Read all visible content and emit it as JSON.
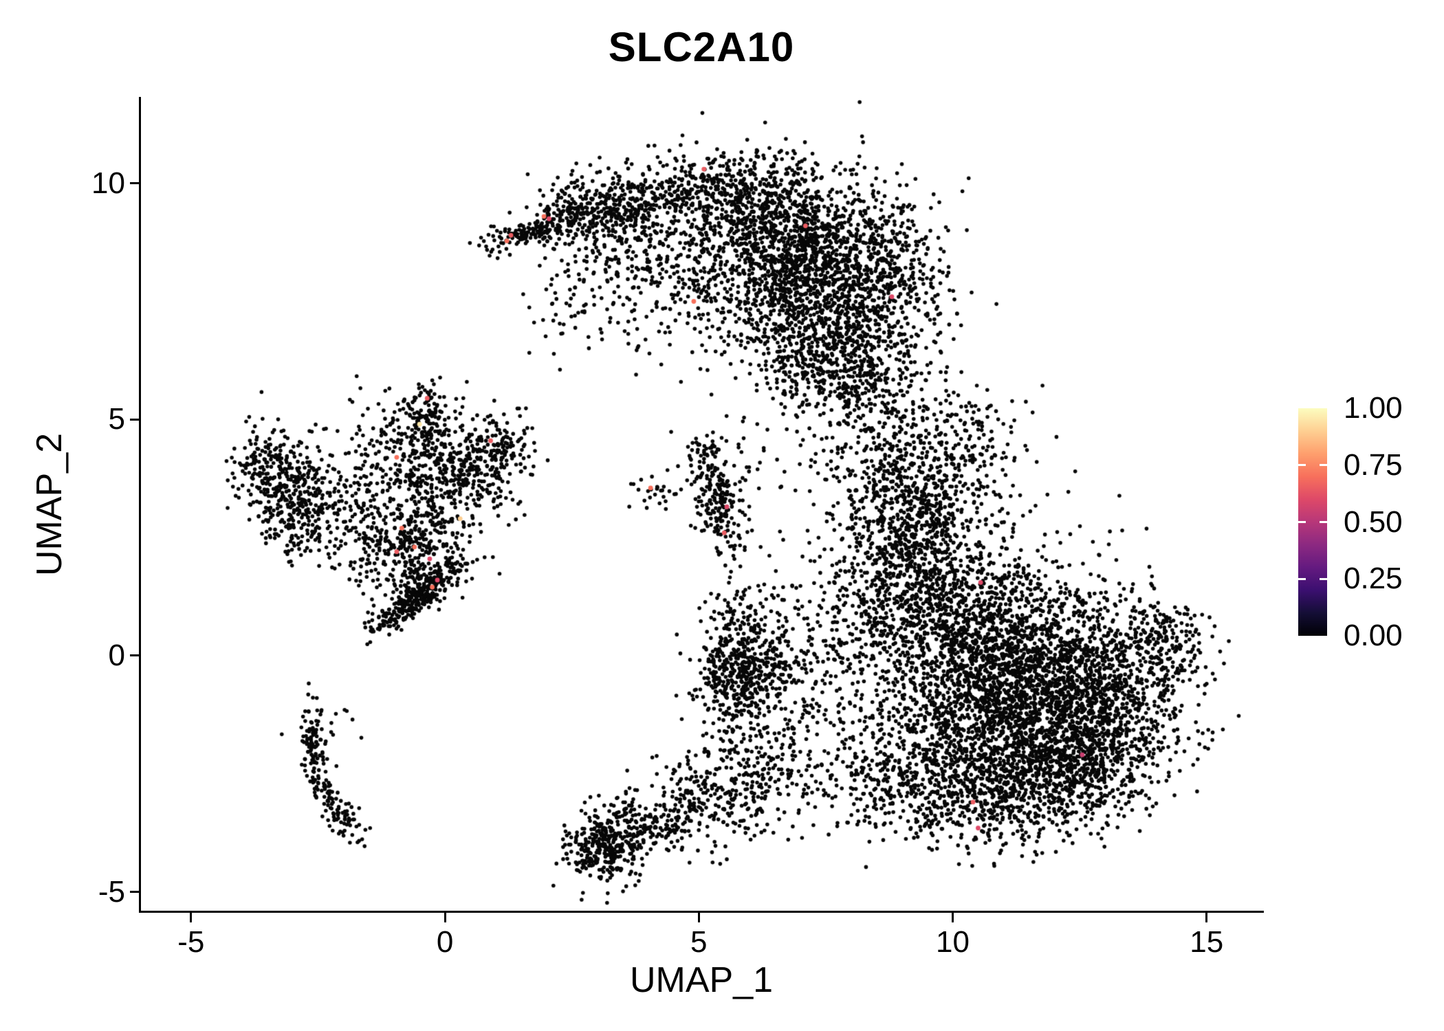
{
  "chart_data": {
    "type": "scatter",
    "title": "SLC2A10",
    "xlabel": "UMAP_1",
    "ylabel": "UMAP_2",
    "x_ticks": [
      "-5",
      "0",
      "5",
      "10",
      "15"
    ],
    "x_tick_values": [
      -5,
      0,
      5,
      10,
      15
    ],
    "y_ticks": [
      "10",
      "5",
      "0",
      "-5"
    ],
    "y_tick_values": [
      10,
      5,
      0,
      -5
    ],
    "xlim": [
      -6.0,
      16.1
    ],
    "ylim": [
      -5.4,
      11.8
    ],
    "grid": "off",
    "legend_position": "right",
    "base_color": "#070707",
    "point_radius_px": 2.8,
    "seed": 7,
    "colorbar": {
      "ticks": [
        {
          "label": "1.00",
          "value": 1.0
        },
        {
          "label": "0.75",
          "value": 0.75
        },
        {
          "label": "0.50",
          "value": 0.5
        },
        {
          "label": "0.25",
          "value": 0.25
        },
        {
          "label": "0.00",
          "value": 0.0
        }
      ],
      "gradient": [
        "#000004",
        "#140e36",
        "#3b0f70",
        "#641a80",
        "#8c2981",
        "#b73779",
        "#de4968",
        "#f7705c",
        "#fe9f6d",
        "#fecf92",
        "#fcfdbf"
      ]
    },
    "clusters": [
      {
        "n": 200,
        "cx": 1.9,
        "cy": 9.05,
        "sx": 0.55,
        "sy": 0.16,
        "rot": 20
      },
      {
        "n": 380,
        "cx": 3.3,
        "cy": 9.55,
        "sx": 0.65,
        "sy": 0.35,
        "rot": 0
      },
      {
        "n": 160,
        "cx": 3.6,
        "cy": 8.6,
        "sx": 0.8,
        "sy": 0.45,
        "rot": 0
      },
      {
        "n": 300,
        "cx": 5.4,
        "cy": 9.9,
        "sx": 0.8,
        "sy": 0.38,
        "rot": 0
      },
      {
        "n": 90,
        "cx": 4.4,
        "cy": 7.9,
        "sx": 0.7,
        "sy": 0.7,
        "rot": 0
      },
      {
        "n": 60,
        "cx": 2.5,
        "cy": 7.4,
        "sx": 0.5,
        "sy": 0.55,
        "rot": 0
      },
      {
        "n": 1500,
        "cx": 6.9,
        "cy": 8.8,
        "sx": 1.15,
        "sy": 0.8,
        "rot": -15
      },
      {
        "n": 850,
        "cx": 7.4,
        "cy": 7.1,
        "sx": 1.0,
        "sy": 0.75,
        "rot": -10
      },
      {
        "n": 280,
        "cx": 7.9,
        "cy": 5.95,
        "sx": 0.8,
        "sy": 0.5,
        "rot": -15
      },
      {
        "n": 220,
        "cx": 9.0,
        "cy": 8.1,
        "sx": 0.5,
        "sy": 0.9,
        "rot": 0
      },
      {
        "n": 190,
        "cx": 8.6,
        "cy": 4.7,
        "sx": 0.5,
        "sy": 0.85,
        "rot": 0
      },
      {
        "n": 520,
        "cx": 9.4,
        "cy": 3.2,
        "sx": 0.75,
        "sy": 0.9,
        "rot": 0
      },
      {
        "n": 470,
        "cx": 9.4,
        "cy": 1.3,
        "sx": 0.7,
        "sy": 1.0,
        "rot": 0
      },
      {
        "n": 1500,
        "cx": 10.9,
        "cy": 0.2,
        "sx": 1.2,
        "sy": 1.1,
        "rot": 0
      },
      {
        "n": 1450,
        "cx": 11.4,
        "cy": -1.3,
        "sx": 1.3,
        "sy": 0.9,
        "rot": 0
      },
      {
        "n": 720,
        "cx": 13.0,
        "cy": -0.6,
        "sx": 0.9,
        "sy": 0.9,
        "rot": 0
      },
      {
        "n": 130,
        "cx": 14.2,
        "cy": 0.3,
        "sx": 0.35,
        "sy": 0.45,
        "rot": 0
      },
      {
        "n": 700,
        "cx": 10.7,
        "cy": -2.8,
        "sx": 1.15,
        "sy": 0.65,
        "rot": 0
      },
      {
        "n": 360,
        "cx": 12.5,
        "cy": -2.4,
        "sx": 0.8,
        "sy": 0.55,
        "rot": 0
      },
      {
        "n": 140,
        "cx": 10.1,
        "cy": 4.5,
        "sx": 0.65,
        "sy": 0.6,
        "rot": 0
      },
      {
        "n": 220,
        "cx": 8.9,
        "cy": 2.2,
        "sx": 0.6,
        "sy": 1.1,
        "rot": 0
      },
      {
        "n": 160,
        "cx": 8.1,
        "cy": 0.1,
        "sx": 0.55,
        "sy": 1.2,
        "rot": 0
      },
      {
        "n": 200,
        "cx": 8.6,
        "cy": -2.6,
        "sx": 0.8,
        "sy": 0.6,
        "rot": 0
      },
      {
        "n": 260,
        "cx": -3.3,
        "cy": 3.9,
        "sx": 0.42,
        "sy": 0.5,
        "rot": 0
      },
      {
        "n": 190,
        "cx": -2.95,
        "cy": 2.95,
        "sx": 0.33,
        "sy": 0.45,
        "rot": 0
      },
      {
        "n": 80,
        "cx": -2.1,
        "cy": 3.5,
        "sx": 0.5,
        "sy": 0.55,
        "rot": 0
      },
      {
        "n": 360,
        "cx": -0.7,
        "cy": 3.6,
        "sx": 0.75,
        "sy": 0.85,
        "rot": 0
      },
      {
        "n": 150,
        "cx": -0.45,
        "cy": 4.9,
        "sx": 0.3,
        "sy": 0.5,
        "rot": 0
      },
      {
        "n": 260,
        "cx": 0.4,
        "cy": 3.9,
        "sx": 0.55,
        "sy": 0.6,
        "rot": 0
      },
      {
        "n": 90,
        "cx": 1.1,
        "cy": 4.45,
        "sx": 0.3,
        "sy": 0.28,
        "rot": 0
      },
      {
        "n": 260,
        "cx": -0.6,
        "cy": 2.3,
        "sx": 0.5,
        "sy": 0.55,
        "rot": 0
      },
      {
        "n": 320,
        "cx": -0.55,
        "cy": 1.25,
        "sx": 0.5,
        "sy": 0.16,
        "rot": 40
      },
      {
        "n": 70,
        "cx": -1.6,
        "cy": 2.3,
        "sx": 0.4,
        "sy": 0.4,
        "rot": 0
      },
      {
        "n": 80,
        "cx": -2.62,
        "cy": -1.9,
        "sx": 0.1,
        "sy": 0.45,
        "rot": 0
      },
      {
        "n": 60,
        "cx": -2.35,
        "cy": -2.85,
        "sx": 0.12,
        "sy": 0.4,
        "rot": 15
      },
      {
        "n": 55,
        "cx": -1.95,
        "cy": -3.45,
        "sx": 0.16,
        "sy": 0.3,
        "rot": 35
      },
      {
        "n": 18,
        "cx": -2.3,
        "cy": -1.5,
        "sx": 0.3,
        "sy": 0.2,
        "rot": 0
      },
      {
        "n": 190,
        "cx": 5.4,
        "cy": 3.1,
        "sx": 0.24,
        "sy": 0.55,
        "rot": 10
      },
      {
        "n": 60,
        "cx": 5.2,
        "cy": 4.25,
        "sx": 0.3,
        "sy": 0.25,
        "rot": 0
      },
      {
        "n": 25,
        "cx": 4.1,
        "cy": 3.5,
        "sx": 0.25,
        "sy": 0.18,
        "rot": 0
      },
      {
        "n": 480,
        "cx": 5.85,
        "cy": -0.3,
        "sx": 0.45,
        "sy": 0.55,
        "rot": 0
      },
      {
        "n": 80,
        "cx": 6.1,
        "cy": 0.9,
        "sx": 0.5,
        "sy": 0.4,
        "rot": 0
      },
      {
        "n": 110,
        "cx": 7.0,
        "cy": -0.6,
        "sx": 0.55,
        "sy": 0.8,
        "rot": 0
      },
      {
        "n": 320,
        "cx": 3.15,
        "cy": -4.1,
        "sx": 0.38,
        "sy": 0.34,
        "rot": 0
      },
      {
        "n": 160,
        "cx": 4.0,
        "cy": -3.6,
        "sx": 0.55,
        "sy": 0.3,
        "rot": -20
      },
      {
        "n": 180,
        "cx": 5.1,
        "cy": -3.1,
        "sx": 0.7,
        "sy": 0.4,
        "rot": -15
      },
      {
        "n": 150,
        "cx": 6.4,
        "cy": -2.7,
        "sx": 0.7,
        "sy": 0.5,
        "rot": 0
      },
      {
        "n": 90,
        "cx": 5.7,
        "cy": -1.9,
        "sx": 0.6,
        "sy": 0.5,
        "rot": 0
      },
      {
        "n": 40,
        "cx": 4.6,
        "cy": 7.1,
        "sx": 1.1,
        "sy": 0.9,
        "rot": 0
      },
      {
        "n": 50,
        "cx": 7.4,
        "cy": 2.1,
        "sx": 0.9,
        "sy": 1.3,
        "rot": 0
      },
      {
        "n": 25,
        "cx": 6.7,
        "cy": 4.6,
        "sx": 0.8,
        "sy": 0.6,
        "rot": 0
      }
    ],
    "highlight_format": "[x, y, expression_value]",
    "highlight_points": [
      [
        1.22,
        8.78,
        0.7
      ],
      [
        1.3,
        8.9,
        0.65
      ],
      [
        1.95,
        9.3,
        0.7
      ],
      [
        2.05,
        9.25,
        0.6
      ],
      [
        5.1,
        10.3,
        0.65
      ],
      [
        4.9,
        7.5,
        0.7
      ],
      [
        7.1,
        9.1,
        0.65
      ],
      [
        8.8,
        7.6,
        0.6
      ],
      [
        -0.95,
        4.2,
        0.7
      ],
      [
        -0.35,
        5.45,
        0.65
      ],
      [
        -0.5,
        4.9,
        0.95
      ],
      [
        -0.85,
        2.7,
        0.7
      ],
      [
        -0.95,
        2.2,
        0.65
      ],
      [
        -0.6,
        2.3,
        0.7
      ],
      [
        -0.3,
        2.05,
        0.6
      ],
      [
        -0.25,
        1.45,
        0.7
      ],
      [
        -0.15,
        1.6,
        0.6
      ],
      [
        0.9,
        4.55,
        0.65
      ],
      [
        0.3,
        2.9,
        0.9
      ],
      [
        4.05,
        3.55,
        0.7
      ],
      [
        5.55,
        3.15,
        0.6
      ],
      [
        5.5,
        2.6,
        0.65
      ],
      [
        10.55,
        1.55,
        0.6
      ],
      [
        10.4,
        -3.1,
        0.65
      ],
      [
        10.5,
        -3.65,
        0.6
      ],
      [
        12.55,
        -2.1,
        0.55
      ]
    ]
  }
}
